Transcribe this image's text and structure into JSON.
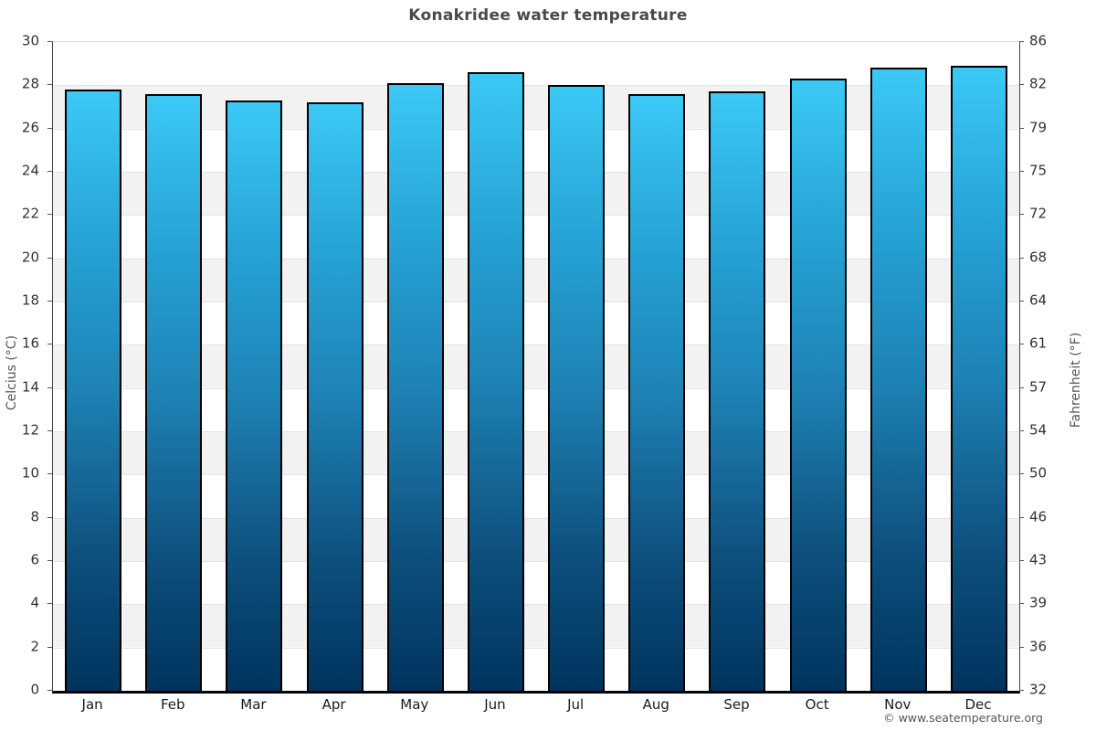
{
  "title": "Konakridee water temperature",
  "footer": "© www.seatemperature.org",
  "chart_data": {
    "type": "bar",
    "title": "Konakridee water temperature",
    "categories": [
      "Jan",
      "Feb",
      "Mar",
      "Apr",
      "May",
      "Jun",
      "Jul",
      "Aug",
      "Sep",
      "Oct",
      "Nov",
      "Dec"
    ],
    "values": [
      27.8,
      27.6,
      27.3,
      27.2,
      28.1,
      28.6,
      28.0,
      27.6,
      27.7,
      28.3,
      28.8,
      28.9
    ],
    "xlabel": "",
    "ylabel_left": "Celcius (°C)",
    "ylabel_right": "Fahrenheit (°F)",
    "ylim": [
      0,
      30
    ],
    "yticks_left": [
      "30",
      "28",
      "26",
      "24",
      "22",
      "20",
      "18",
      "16",
      "14",
      "12",
      "10",
      "8",
      "6",
      "4",
      "2",
      "0"
    ],
    "yticks_right": [
      "86",
      "82",
      "79",
      "75",
      "72",
      "68",
      "64",
      "61",
      "57",
      "54",
      "50",
      "46",
      "43",
      "39",
      "36",
      "32"
    ],
    "grid": "horizontal-bands",
    "legend": "none",
    "colors": {
      "bar_gradient_top": "#3bc9f6",
      "bar_gradient_mid": "#1e82b5",
      "bar_gradient_bottom": "#00345e",
      "bar_border": "#000000",
      "band_stripe": "#f2f2f2",
      "axis_line": "#444444",
      "baseline": "#000000",
      "title_color": "#4a4a4a"
    }
  }
}
